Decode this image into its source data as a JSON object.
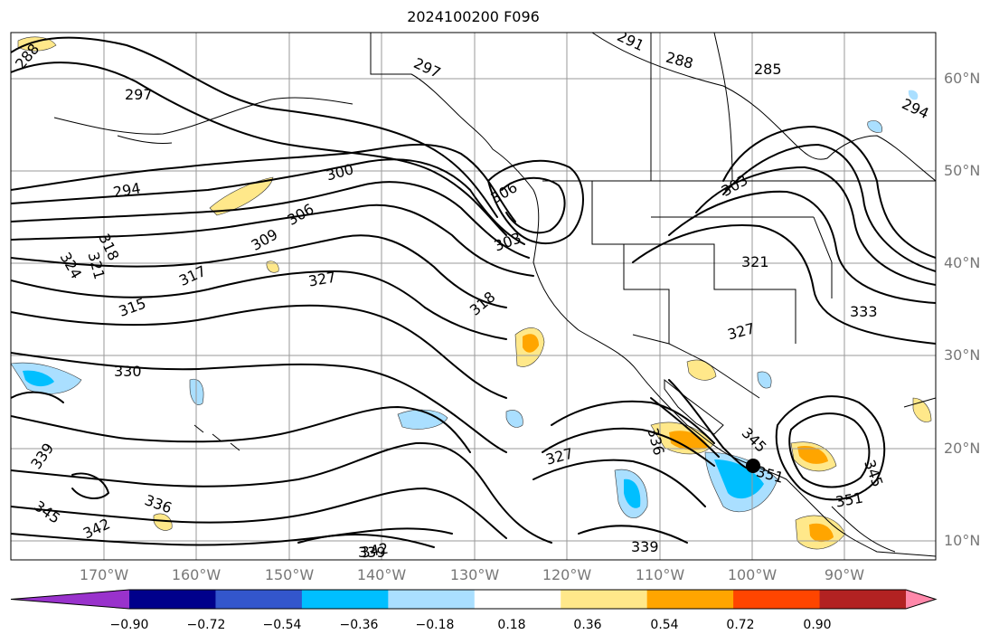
{
  "title": "2024100200 F096",
  "map": {
    "lat_labels": [
      "60°N",
      "50°N",
      "40°N",
      "30°N",
      "20°N",
      "10°N"
    ],
    "lon_labels": [
      "170°W",
      "160°W",
      "150°W",
      "140°W",
      "130°W",
      "120°W",
      "110°W",
      "100°W",
      "90°W"
    ],
    "contour_labels": [
      "288",
      "297",
      "297",
      "291",
      "288",
      "285",
      "294",
      "294",
      "300",
      "306",
      "309",
      "306",
      "303",
      "303",
      "324",
      "321",
      "318",
      "317",
      "315",
      "327",
      "318",
      "327",
      "321",
      "333",
      "330",
      "339",
      "336",
      "345",
      "342",
      "327",
      "336",
      "345",
      "342",
      "339",
      "339",
      "351",
      "351",
      "345"
    ]
  },
  "colorbar": {
    "ticks": [
      "−0.90",
      "−0.72",
      "−0.54",
      "−0.36",
      "−0.18",
      "0.18",
      "0.36",
      "0.54",
      "0.72",
      "0.90"
    ],
    "colors": [
      "#9932cc",
      "#00008b",
      "#3356cc",
      "#00bfff",
      "#aadfff",
      "#ffffff",
      "#ffe88a",
      "#ffa500",
      "#ff4500",
      "#b22222",
      "#ff88aa"
    ]
  }
}
